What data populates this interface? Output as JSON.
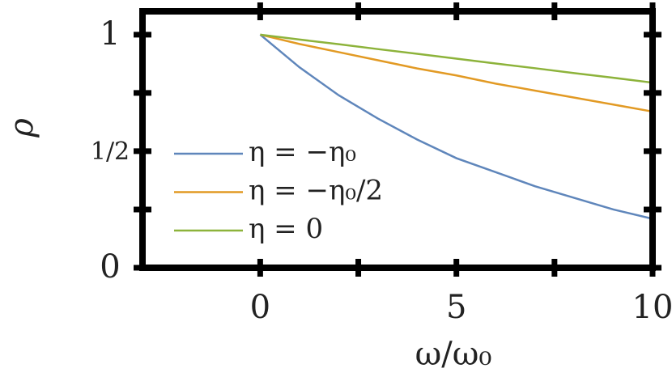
{
  "chart_data": {
    "type": "line",
    "x": [
      0,
      1,
      2,
      3,
      4,
      5,
      6,
      7,
      8,
      9,
      10
    ],
    "series": [
      {
        "name": "η = −η₀",
        "color": "#5f86bb",
        "values": [
          1,
          0.86,
          0.74,
          0.64,
          0.55,
          0.47,
          0.41,
          0.35,
          0.3,
          0.25,
          0.21
        ]
      },
      {
        "name": "η = −η₀/2",
        "color": "#e29a24",
        "values": [
          1,
          0.96,
          0.925,
          0.89,
          0.855,
          0.825,
          0.79,
          0.76,
          0.73,
          0.7,
          0.67
        ]
      },
      {
        "name": "η = 0",
        "color": "#8db33b",
        "values": [
          1,
          0.979,
          0.959,
          0.938,
          0.918,
          0.897,
          0.876,
          0.856,
          0.835,
          0.815,
          0.794
        ]
      }
    ],
    "xlabel": "ω/ω₀",
    "ylabel": "ρ",
    "xlim": [
      -3,
      10
    ],
    "ylim": [
      0,
      1.1
    ],
    "xticks": [
      0,
      5,
      10
    ],
    "yticks": [
      0,
      {
        "value": 0.5,
        "label": "1/2"
      },
      1
    ],
    "xminorticks": [
      2.5,
      7.5
    ],
    "yminorticks": [
      0.25,
      0.75
    ],
    "legend": "lower left"
  }
}
